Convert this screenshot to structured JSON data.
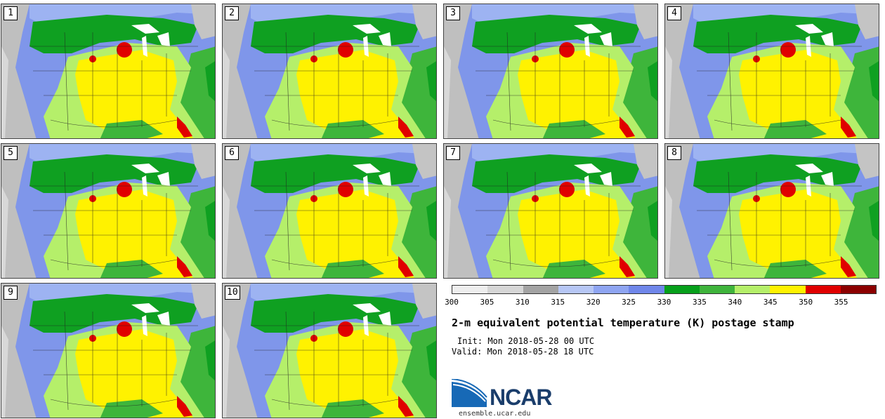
{
  "stamps": [
    {
      "label": "1"
    },
    {
      "label": "2"
    },
    {
      "label": "3"
    },
    {
      "label": "4"
    },
    {
      "label": "5"
    },
    {
      "label": "6"
    },
    {
      "label": "7"
    },
    {
      "label": "8"
    },
    {
      "label": "9"
    },
    {
      "label": "10"
    }
  ],
  "colorbar": {
    "colors": [
      "#eeeeee",
      "#d6d6d6",
      "#a3a3a3",
      "#b7c7f5",
      "#8fa5f2",
      "#7087ea",
      "#07a01b",
      "#3fb43c",
      "#b5ef6a",
      "#fff200",
      "#e00000",
      "#8c0000"
    ],
    "ticks": [
      "300",
      "305",
      "310",
      "315",
      "320",
      "325",
      "330",
      "335",
      "340",
      "345",
      "350",
      "355"
    ]
  },
  "title": "2-m equivalent potential temperature (K) postage stamp",
  "init": "Init: Mon 2018-05-28 00 UTC",
  "valid": "Valid: Mon 2018-05-28 18 UTC",
  "logo": {
    "text": "NCAR"
  },
  "url": "ensemble.ucar.edu"
}
